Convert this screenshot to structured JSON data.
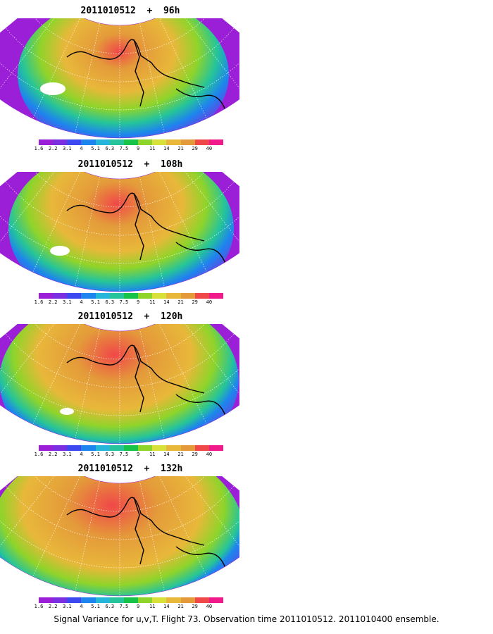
{
  "panels": [
    {
      "title": "2011010512  +  96h"
    },
    {
      "title": "2011010512  +  108h"
    },
    {
      "title": "2011010512  +  120h"
    },
    {
      "title": "2011010512  +  132h"
    }
  ],
  "colorbar": {
    "labels": [
      "1.6",
      "2.2",
      "3.1",
      "4",
      "5.1",
      "6.3",
      "7.5",
      "9",
      "11",
      "14",
      "21",
      "29",
      "40"
    ],
    "colors": [
      "#9b1fd6",
      "#7a2fe0",
      "#3e48f0",
      "#1e84ee",
      "#25b6da",
      "#25c49a",
      "#18c34a",
      "#8fd42a",
      "#d8e03a",
      "#e8b83a",
      "#e49a3a",
      "#f04848",
      "#f01a8a"
    ]
  },
  "footer": "Signal Variance for u,v,T. Flight 73. Observation time 2011010512. 2011010400 ensemble."
}
